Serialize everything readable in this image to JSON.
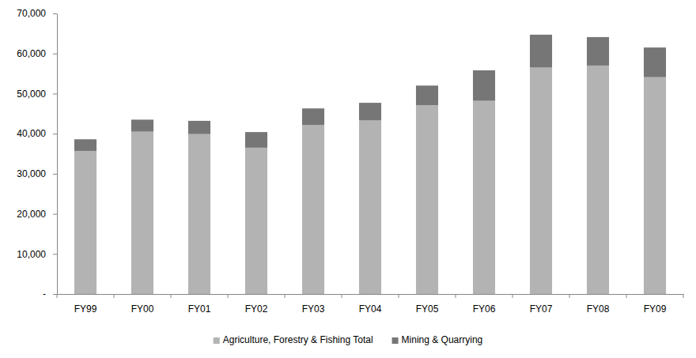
{
  "chart_data": {
    "type": "bar",
    "stacked": true,
    "grid": false,
    "legend": "bottom",
    "categories": [
      "FY99",
      "FY00",
      "FY01",
      "FY02",
      "FY03",
      "FY04",
      "FY05",
      "FY06",
      "FY07",
      "FY08",
      "FY09"
    ],
    "series": [
      {
        "name": "Agriculture, Forestry & Fishing Total",
        "color": "#b3b3b3",
        "values": [
          35700,
          40500,
          39900,
          36500,
          42200,
          43300,
          47100,
          48200,
          56500,
          57000,
          54100
        ]
      },
      {
        "name": "Mining & Quarrying",
        "color": "#767676",
        "values": [
          2900,
          3000,
          3300,
          3900,
          4100,
          4400,
          4900,
          7600,
          8200,
          7100,
          7400
        ]
      }
    ],
    "ylim": [
      0,
      70000
    ],
    "yticks": [
      {
        "value": 0,
        "label": "-"
      },
      {
        "value": 10000,
        "label": "10,000"
      },
      {
        "value": 20000,
        "label": "20,000"
      },
      {
        "value": 30000,
        "label": "30,000"
      },
      {
        "value": 40000,
        "label": "40,000"
      },
      {
        "value": 50000,
        "label": "50,000"
      },
      {
        "value": 60000,
        "label": "60,000"
      },
      {
        "value": 70000,
        "label": "70,000"
      }
    ]
  }
}
